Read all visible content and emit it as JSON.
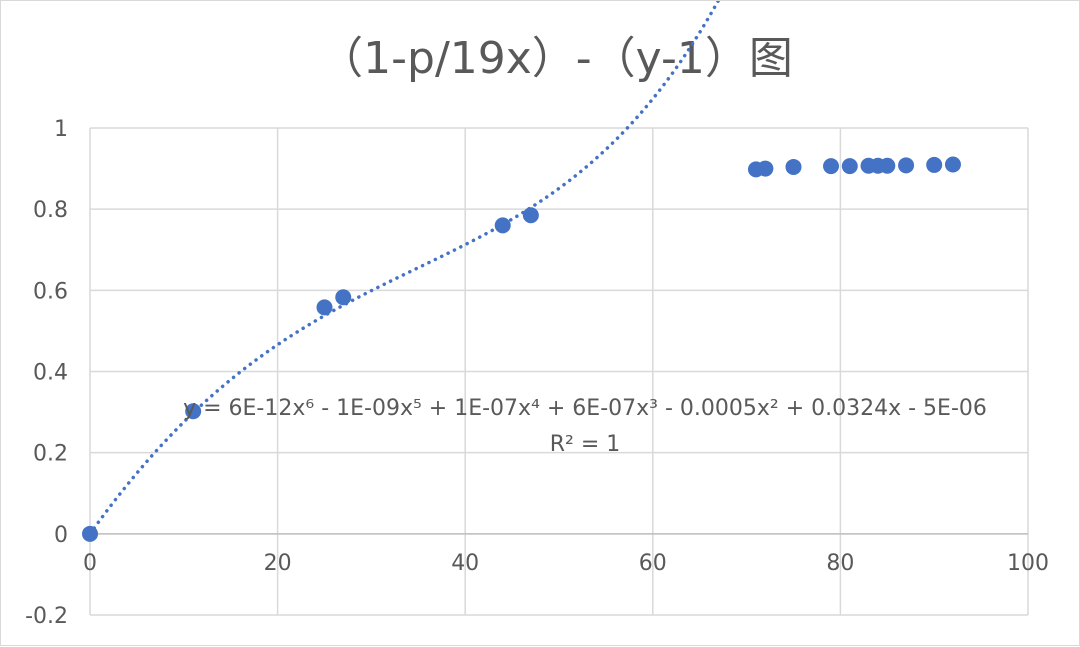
{
  "chart_data": {
    "type": "scatter",
    "title": "（1-p/19x）-（y-1）图",
    "xlim": [
      0,
      100
    ],
    "ylim": [
      -0.2,
      1
    ],
    "x_ticks": [
      0,
      20,
      40,
      60,
      80,
      100
    ],
    "y_ticks": [
      -0.2,
      0,
      0.2,
      0.4,
      0.6,
      0.8,
      1
    ],
    "x_tick_labels": [
      "0",
      "20",
      "40",
      "60",
      "80",
      "100"
    ],
    "y_tick_labels": [
      "-0.2",
      "0",
      "0.2",
      "0.4",
      "0.6",
      "0.8",
      "1"
    ],
    "grid": true,
    "legend": "none",
    "series": [
      {
        "points": [
          [
            0,
            0
          ],
          [
            11,
            0.302
          ],
          [
            25,
            0.558
          ],
          [
            27,
            0.583
          ],
          [
            44,
            0.76
          ],
          [
            47,
            0.785
          ],
          [
            71,
            0.898
          ],
          [
            72,
            0.9
          ],
          [
            75,
            0.904
          ],
          [
            79,
            0.906
          ],
          [
            81,
            0.906
          ],
          [
            83,
            0.907
          ],
          [
            84,
            0.907
          ],
          [
            85,
            0.907
          ],
          [
            87,
            0.908
          ],
          [
            90,
            0.909
          ],
          [
            92,
            0.91
          ]
        ],
        "color": "#4472c4"
      }
    ],
    "trendline": {
      "type": "polynomial",
      "order": 6,
      "style": "dotted",
      "color": "#4472c4",
      "coefficients": [
        -5e-06,
        0.0324,
        -0.0005,
        6e-07,
        1e-07,
        -1e-09,
        6e-12
      ],
      "x_range": [
        0,
        92
      ],
      "equation_label": "y = 6E-12x⁶ - 1E-09x⁵ + 1E-07x⁴ + 6E-07x³ - 0.0005x² + 0.0324x - 5E-06",
      "r2_label": "R² = 1"
    },
    "colors": {
      "marker": "#4472c4",
      "grid": "#d9d9d9",
      "text": "#595959"
    }
  }
}
